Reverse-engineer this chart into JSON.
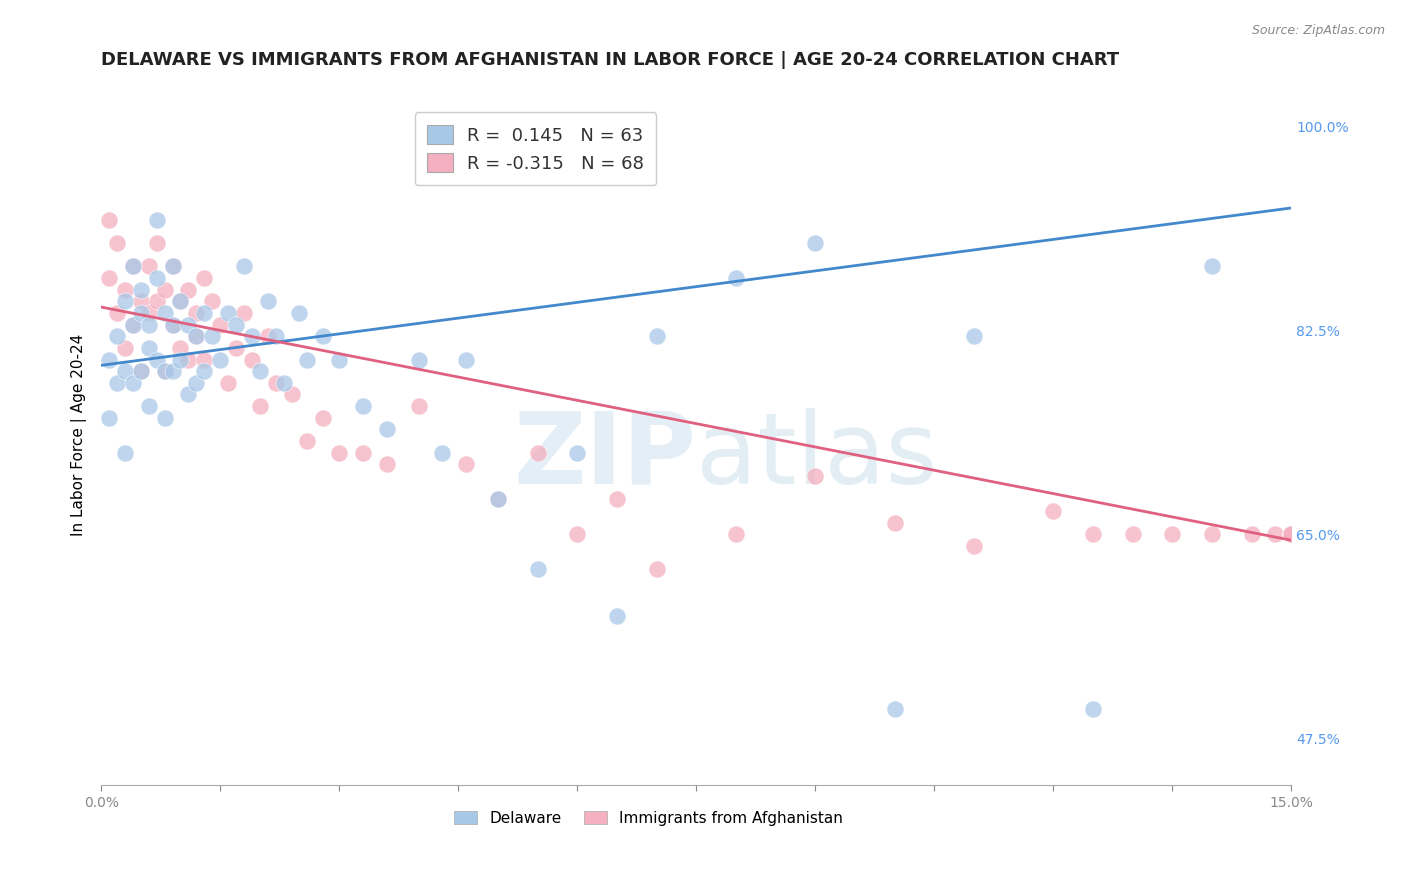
{
  "title": "DELAWARE VS IMMIGRANTS FROM AFGHANISTAN IN LABOR FORCE | AGE 20-24 CORRELATION CHART",
  "source_text": "Source: ZipAtlas.com",
  "ylabel": "In Labor Force | Age 20-24",
  "xlim": [
    0.0,
    0.15
  ],
  "ylim": [
    0.435,
    1.035
  ],
  "xticks": [
    0.0,
    0.015,
    0.03,
    0.045,
    0.06,
    0.075,
    0.09,
    0.105,
    0.12,
    0.135,
    0.15
  ],
  "xticklabels": [
    "0.0%",
    "",
    "",
    "",
    "",
    "",
    "",
    "",
    "",
    "",
    "15.0%"
  ],
  "xlabels_show": [
    "0.0%",
    "15.0%"
  ],
  "right_yticks": [
    0.475,
    0.65,
    0.825,
    1.0
  ],
  "right_yticklabels": [
    "47.5%",
    "65.0%",
    "82.5%",
    "100.0%"
  ],
  "watermark_zip": "ZIP",
  "watermark_atlas": "atlas",
  "legend_R1_val": "0.145",
  "legend_N1_val": "63",
  "legend_R2_val": "-0.315",
  "legend_N2_val": "68",
  "legend_label1": "Delaware",
  "legend_label2": "Immigrants from Afghanistan",
  "color_delaware": "#a8c8e8",
  "color_afghanistan": "#f4afc0",
  "color_line_delaware": "#4488cc",
  "color_line_afghanistan": "#e06080",
  "color_right_ytick": "#5599ee",
  "color_xtick": "#5599ee",
  "background_color": "#ffffff",
  "grid_color": "#dddddd",
  "title_fontsize": 13,
  "axis_fontsize": 11,
  "tick_fontsize": 10,
  "del_x": [
    0.001,
    0.001,
    0.002,
    0.002,
    0.003,
    0.003,
    0.003,
    0.004,
    0.004,
    0.004,
    0.005,
    0.005,
    0.005,
    0.006,
    0.006,
    0.006,
    0.007,
    0.007,
    0.007,
    0.008,
    0.008,
    0.008,
    0.009,
    0.009,
    0.009,
    0.01,
    0.01,
    0.011,
    0.011,
    0.012,
    0.012,
    0.013,
    0.013,
    0.014,
    0.015,
    0.016,
    0.017,
    0.018,
    0.019,
    0.02,
    0.021,
    0.022,
    0.023,
    0.025,
    0.026,
    0.028,
    0.03,
    0.033,
    0.036,
    0.04,
    0.043,
    0.046,
    0.05,
    0.055,
    0.06,
    0.065,
    0.07,
    0.08,
    0.09,
    0.1,
    0.11,
    0.125,
    0.14
  ],
  "del_y": [
    0.8,
    0.75,
    0.82,
    0.78,
    0.85,
    0.79,
    0.72,
    0.88,
    0.83,
    0.78,
    0.84,
    0.79,
    0.86,
    0.81,
    0.76,
    0.83,
    0.87,
    0.8,
    0.92,
    0.84,
    0.79,
    0.75,
    0.88,
    0.83,
    0.79,
    0.85,
    0.8,
    0.83,
    0.77,
    0.82,
    0.78,
    0.84,
    0.79,
    0.82,
    0.8,
    0.84,
    0.83,
    0.88,
    0.82,
    0.79,
    0.85,
    0.82,
    0.78,
    0.84,
    0.8,
    0.82,
    0.8,
    0.76,
    0.74,
    0.8,
    0.72,
    0.8,
    0.68,
    0.62,
    0.72,
    0.58,
    0.82,
    0.87,
    0.9,
    0.5,
    0.82,
    0.5,
    0.88
  ],
  "afg_x": [
    0.001,
    0.001,
    0.002,
    0.002,
    0.003,
    0.003,
    0.004,
    0.004,
    0.005,
    0.005,
    0.006,
    0.006,
    0.007,
    0.007,
    0.008,
    0.008,
    0.009,
    0.009,
    0.01,
    0.01,
    0.011,
    0.011,
    0.012,
    0.012,
    0.013,
    0.013,
    0.014,
    0.015,
    0.016,
    0.017,
    0.018,
    0.019,
    0.02,
    0.021,
    0.022,
    0.024,
    0.026,
    0.028,
    0.03,
    0.033,
    0.036,
    0.04,
    0.046,
    0.05,
    0.055,
    0.06,
    0.065,
    0.07,
    0.08,
    0.09,
    0.1,
    0.11,
    0.12,
    0.125,
    0.13,
    0.135,
    0.14,
    0.145,
    0.148,
    0.15,
    0.15,
    0.15,
    0.15,
    0.15,
    0.15,
    0.15,
    0.15,
    0.15
  ],
  "afg_y": [
    0.87,
    0.92,
    0.9,
    0.84,
    0.86,
    0.81,
    0.88,
    0.83,
    0.85,
    0.79,
    0.84,
    0.88,
    0.9,
    0.85,
    0.86,
    0.79,
    0.83,
    0.88,
    0.85,
    0.81,
    0.86,
    0.8,
    0.84,
    0.82,
    0.87,
    0.8,
    0.85,
    0.83,
    0.78,
    0.81,
    0.84,
    0.8,
    0.76,
    0.82,
    0.78,
    0.77,
    0.73,
    0.75,
    0.72,
    0.72,
    0.71,
    0.76,
    0.71,
    0.68,
    0.72,
    0.65,
    0.68,
    0.62,
    0.65,
    0.7,
    0.66,
    0.64,
    0.67,
    0.65,
    0.65,
    0.65,
    0.65,
    0.65,
    0.65,
    0.65,
    0.65,
    0.65,
    0.65,
    0.65,
    0.65,
    0.65,
    0.65,
    0.65
  ],
  "line_del_x0": 0.0,
  "line_del_y0": 0.795,
  "line_del_x1": 0.15,
  "line_del_y1": 0.93,
  "line_afg_x0": 0.0,
  "line_afg_y0": 0.845,
  "line_afg_x1": 0.15,
  "line_afg_y1": 0.645
}
